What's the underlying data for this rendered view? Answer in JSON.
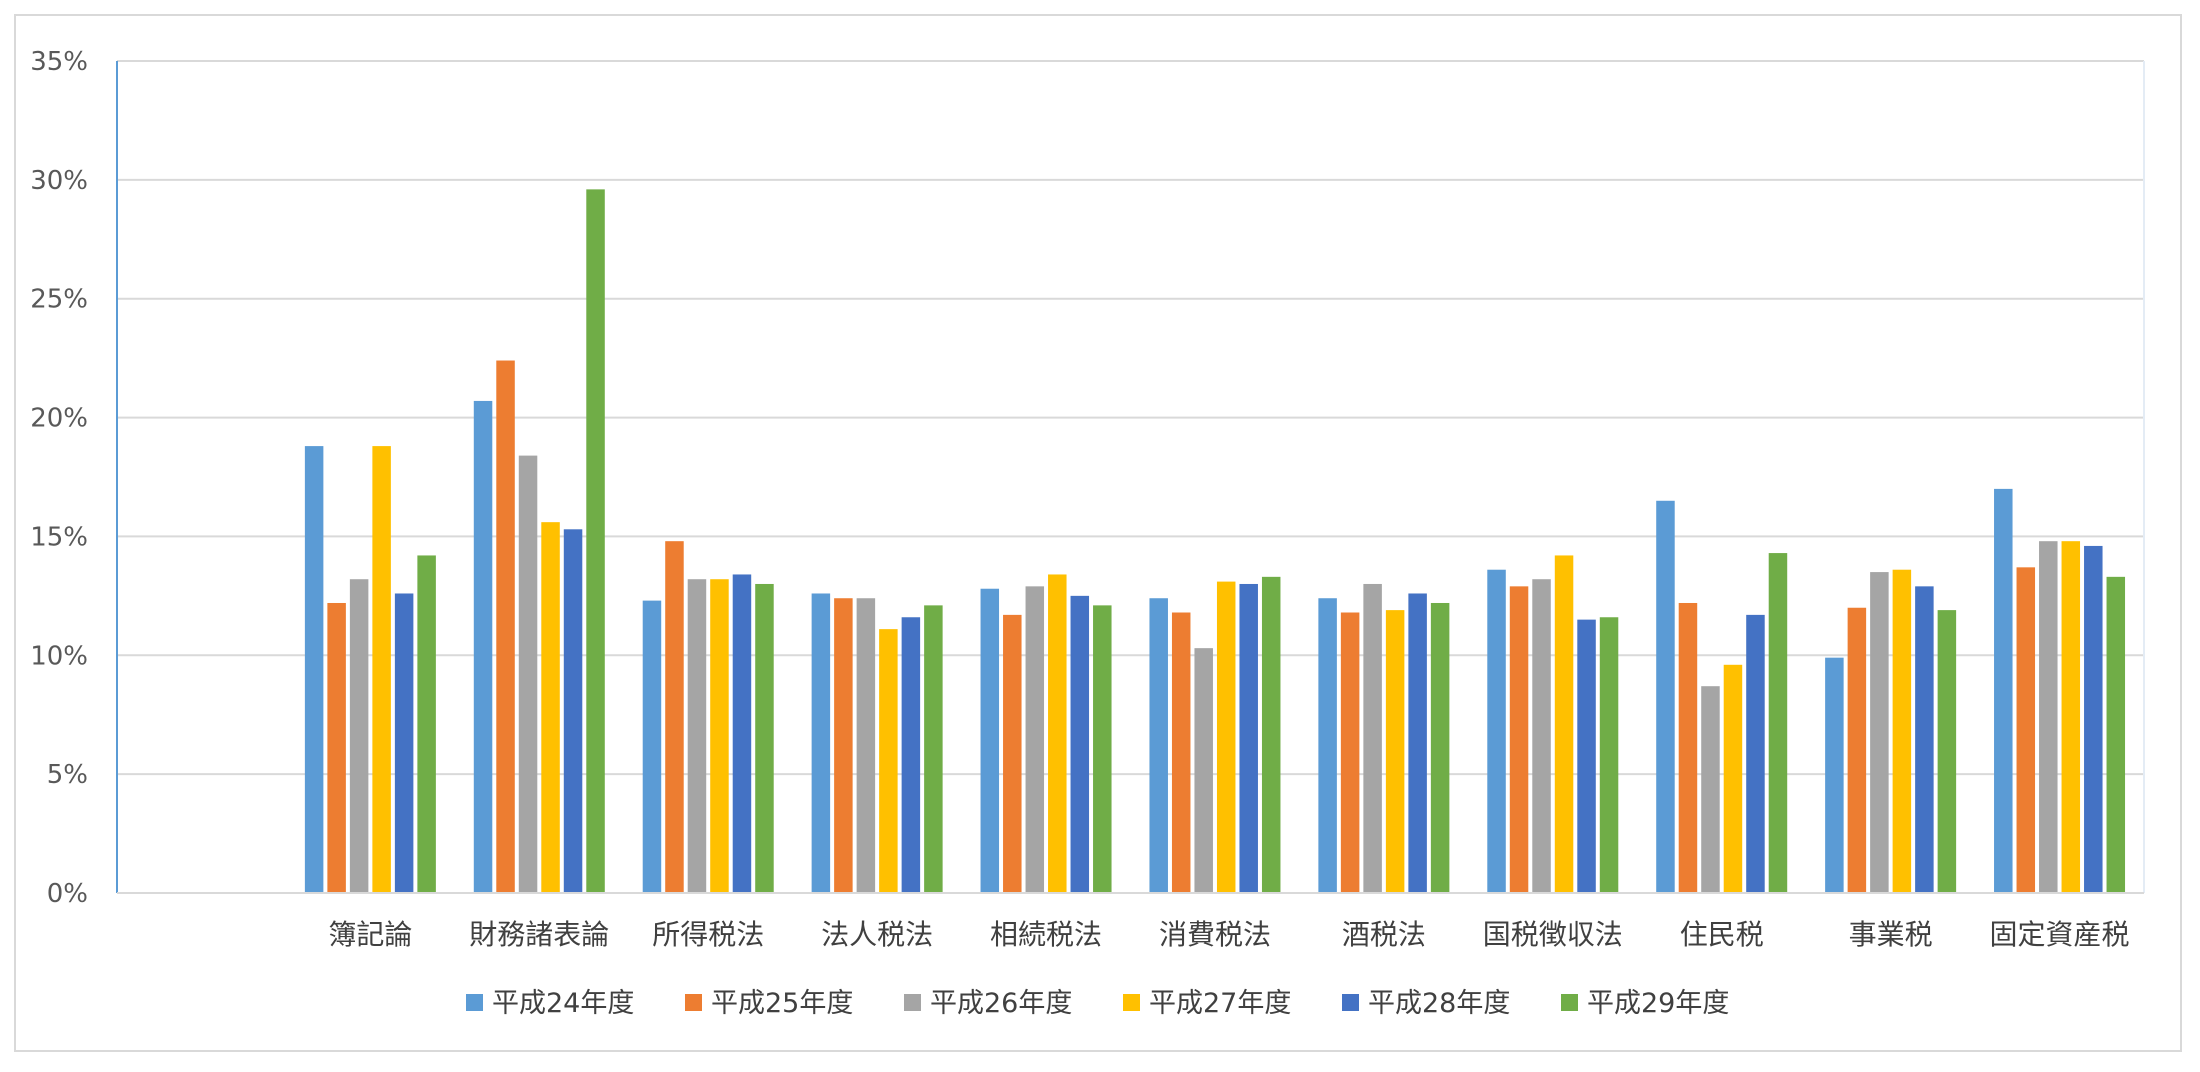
{
  "chart_data": {
    "type": "bar",
    "title": "",
    "xlabel": "",
    "ylabel": "",
    "ylim": [
      0,
      35
    ],
    "y_ticks": [
      "0%",
      "5%",
      "10%",
      "15%",
      "20%",
      "25%",
      "30%",
      "35%"
    ],
    "y_tick_values": [
      0,
      5,
      10,
      15,
      20,
      25,
      30,
      35
    ],
    "grid": true,
    "legend_position": "bottom",
    "categories": [
      "簿記論",
      "財務諸表論",
      "所得税法",
      "法人税法",
      "相続税法",
      "消費税法",
      "酒税法",
      "国税徴収法",
      "住民税",
      "事業税",
      "固定資産税"
    ],
    "series": [
      {
        "name": "平成24年度",
        "color": "#5b9bd5",
        "values": [
          18.8,
          20.7,
          12.3,
          12.6,
          12.8,
          12.4,
          12.4,
          13.6,
          16.5,
          9.9,
          17.0
        ]
      },
      {
        "name": "平成25年度",
        "color": "#ed7d31",
        "values": [
          12.2,
          22.4,
          14.8,
          12.4,
          11.7,
          11.8,
          11.8,
          12.9,
          12.2,
          12.0,
          13.7
        ]
      },
      {
        "name": "平成26年度",
        "color": "#a5a5a5",
        "values": [
          13.2,
          18.4,
          13.2,
          12.4,
          12.9,
          10.3,
          13.0,
          13.2,
          8.7,
          13.5,
          14.8
        ]
      },
      {
        "name": "平成27年度",
        "color": "#ffc000",
        "values": [
          18.8,
          15.6,
          13.2,
          11.1,
          13.4,
          13.1,
          11.9,
          14.2,
          9.6,
          13.6,
          14.8
        ]
      },
      {
        "name": "平成28年度",
        "color": "#4472c4",
        "values": [
          12.6,
          15.3,
          13.4,
          11.6,
          12.5,
          13.0,
          12.6,
          11.5,
          11.7,
          12.9,
          14.6
        ]
      },
      {
        "name": "平成29年度",
        "color": "#70ad47",
        "values": [
          14.2,
          29.6,
          13.0,
          12.1,
          12.1,
          13.3,
          12.2,
          11.6,
          14.3,
          11.9,
          13.3
        ]
      }
    ]
  }
}
